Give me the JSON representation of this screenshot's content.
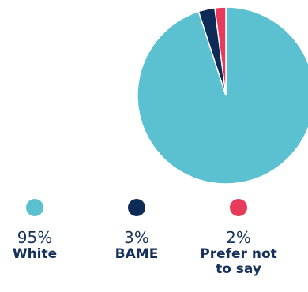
{
  "chart_data": {
    "type": "pie",
    "slices": [
      {
        "label": "White",
        "value": 95,
        "value_label": "95%",
        "color": "#5bc1d1"
      },
      {
        "label": "BAME",
        "value": 3,
        "value_label": "3%",
        "color": "#0e2a56"
      },
      {
        "label": "Prefer not to say",
        "value": 2,
        "value_label": "2%",
        "color": "#e83a5a"
      }
    ],
    "legend_placement": "bottom"
  }
}
